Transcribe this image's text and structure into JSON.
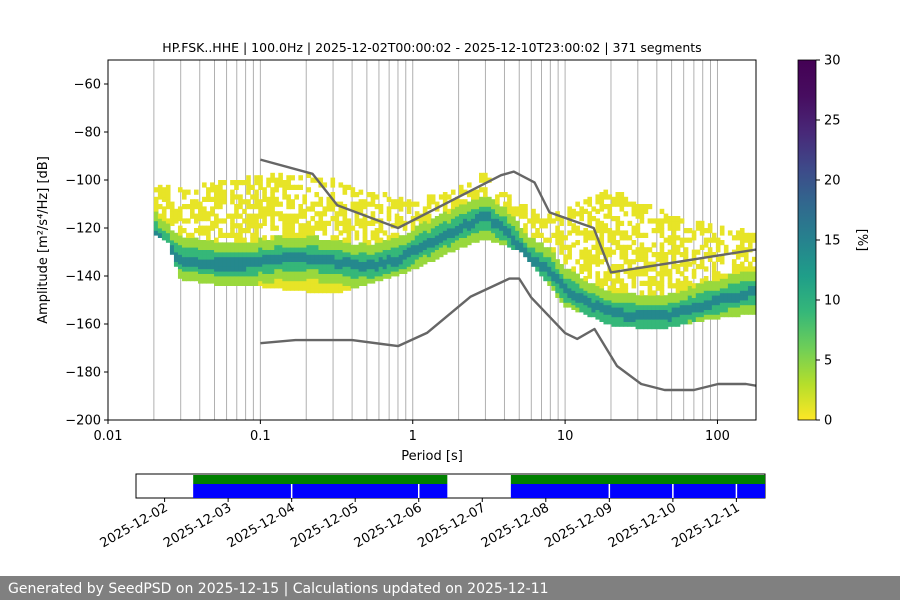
{
  "chart_data": [
    {
      "type": "heatmap",
      "title": "HP.FSK..HHE | 100.0Hz | 2025-12-02T00:00:02 - 2025-12-10T23:00:02 | 371 segments",
      "xlabel": "Period [s]",
      "ylabel": "Amplitude [m²/s⁴/Hz] [dB]",
      "x_scale": "log",
      "xlim": [
        0.01,
        179
      ],
      "ylim": [
        -200,
        -50
      ],
      "x_ticks": [
        "0.01",
        "0.1",
        "1",
        "10",
        "100"
      ],
      "y_ticks": [
        "−60",
        "−80",
        "−100",
        "−120",
        "−140",
        "−160",
        "−180",
        "−200"
      ],
      "grid": "vertical lines at log decade subdivisions",
      "colorbar": {
        "label": "[%]",
        "range": [
          0,
          30
        ],
        "ticks": [
          "0",
          "5",
          "10",
          "15",
          "20",
          "25",
          "30"
        ],
        "colormap": "viridis_r"
      },
      "density_mode": {
        "period": [
          0.02,
          0.025,
          0.03,
          0.05,
          0.08,
          0.12,
          0.2,
          0.3,
          0.5,
          0.8,
          1.2,
          2,
          3,
          4,
          5,
          6,
          8,
          10,
          15,
          20,
          30,
          50,
          80,
          120,
          179
        ],
        "amplitude_db": [
          -122,
          -128,
          -133,
          -135,
          -135,
          -133,
          -132,
          -134,
          -136,
          -133,
          -127,
          -120,
          -115,
          -120,
          -128,
          -133,
          -138,
          -145,
          -152,
          -155,
          -157,
          -156,
          -152,
          -149,
          -146
        ]
      },
      "density_spread_db": {
        "period": [
          0.02,
          0.025,
          0.03,
          0.05,
          0.1,
          0.2,
          0.3,
          0.5,
          1,
          2,
          3,
          5,
          7,
          10,
          20,
          40,
          80,
          179
        ],
        "lower": [
          -122,
          -126,
          -141,
          -143,
          -144,
          -146,
          -147,
          -143,
          -137,
          -128,
          -124,
          -129,
          -140,
          -152,
          -160,
          -162,
          -158,
          -155
        ],
        "upper": [
          -100,
          -103,
          -104,
          -101,
          -98,
          -97,
          -100,
          -104,
          -109,
          -103,
          -97,
          -109,
          -114,
          -112,
          -104,
          -112,
          -118,
          -122
        ]
      },
      "series": [
        {
          "name": "NHNM",
          "x": [
            0.1,
            0.22,
            0.32,
            0.8,
            3.8,
            4.6,
            6.3,
            7.9,
            15.4,
            20,
            354.8
          ],
          "y": [
            -91.5,
            -97.4,
            -110.5,
            -120,
            -98,
            -96.5,
            -101,
            -113.5,
            -120,
            -138.5,
            -126
          ]
        },
        {
          "name": "NLNM",
          "x": [
            0.1,
            0.17,
            0.4,
            0.8,
            1.24,
            2.4,
            4.3,
            5,
            6,
            10,
            12,
            15.6,
            21.9,
            31.6,
            45,
            70,
            101,
            154,
            179
          ],
          "y": [
            -168,
            -166.7,
            -166.7,
            -169.2,
            -163.7,
            -148.6,
            -141.1,
            -141.1,
            -149,
            -163.8,
            -166.2,
            -162.1,
            -177.5,
            -185,
            -187.5,
            -187.5,
            -185,
            -185,
            -185.7
          ]
        }
      ],
      "colors": {
        "noise_model_lines": "#666666"
      }
    },
    {
      "type": "timeline",
      "x_ticks": [
        "2025-12-02",
        "2025-12-03",
        "2025-12-04",
        "2025-12-05",
        "2025-12-06",
        "2025-12-07",
        "2025-12-08",
        "2025-12-09",
        "2025-12-10",
        "2025-12-11"
      ],
      "coverage_days": [
        [
          0.45,
          4.45
        ],
        [
          5.45,
          9.45
        ]
      ],
      "segment_breaks_days": [
        2.0,
        4.0,
        7.0,
        8.0,
        9.0
      ],
      "colors": {
        "data": "#0000ff",
        "psd": "#008000"
      }
    }
  ],
  "footer": {
    "text": "Generated by SeedPSD on 2025-12-15 | Calculations updated on 2025-12-11"
  }
}
